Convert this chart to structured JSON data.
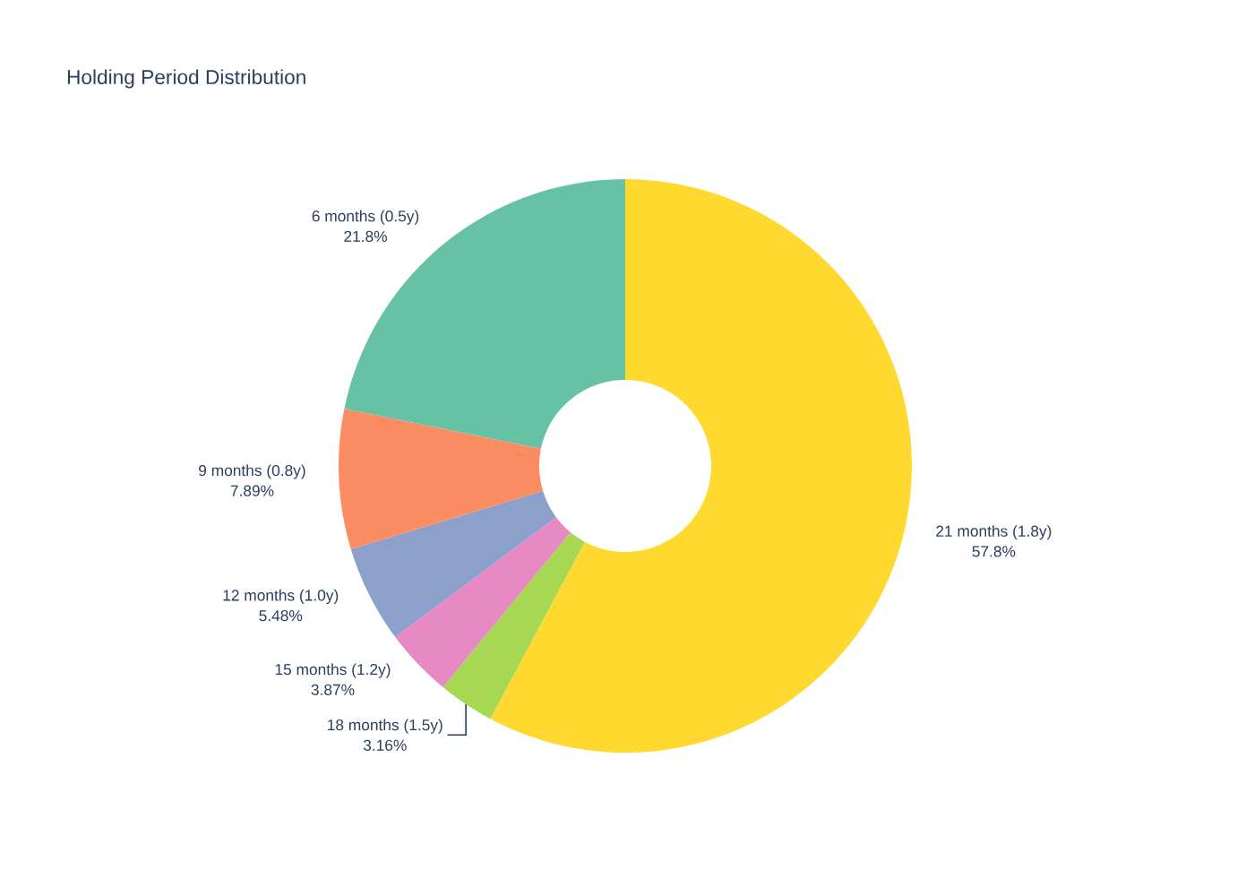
{
  "chart_data": {
    "type": "donut",
    "title": "Holding Period Distribution",
    "categories": [
      "21 months (1.8y)",
      "18 months (1.5y)",
      "15 months (1.2y)",
      "12 months (1.0y)",
      "9 months (0.8y)",
      "6 months (0.5y)"
    ],
    "values": [
      57.8,
      3.16,
      3.87,
      5.48,
      7.89,
      21.8
    ],
    "colors": [
      "#ffd92f",
      "#a6d854",
      "#e78ac3",
      "#8da0cb",
      "#fc8d62",
      "#66c2a5"
    ],
    "value_labels": [
      "57.8%",
      "3.16%",
      "3.87%",
      "5.48%",
      "7.89%",
      "21.8%"
    ]
  }
}
